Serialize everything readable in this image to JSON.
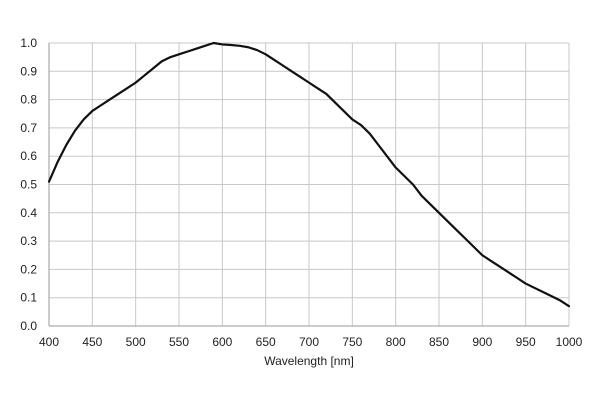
{
  "chart_data": {
    "type": "line",
    "title": "",
    "xlabel": "Wavelength [nm]",
    "ylabel": "",
    "xlim": [
      400,
      1000
    ],
    "ylim": [
      0,
      1.0
    ],
    "grid": true,
    "legend": "none",
    "x_ticks": [
      400,
      450,
      500,
      550,
      600,
      650,
      700,
      750,
      800,
      850,
      900,
      950,
      1000
    ],
    "x_tick_labels": [
      "400",
      "450",
      "500",
      "550",
      "600",
      "650",
      "700",
      "750",
      "800",
      "850",
      "900",
      "950",
      "1000"
    ],
    "y_ticks": [
      0,
      0.1,
      0.2,
      0.3,
      0.4,
      0.5,
      0.6,
      0.7,
      0.8,
      0.9,
      1.0
    ],
    "y_tick_labels": [
      "0.0",
      "0.1",
      "0.2",
      "0.3",
      "0.4",
      "0.5",
      "0.6",
      "0.7",
      "0.8",
      "0.9",
      "1.0"
    ],
    "series": [
      {
        "color": "#111111",
        "x": [
          400,
          410,
          420,
          430,
          440,
          450,
          460,
          470,
          480,
          490,
          500,
          510,
          520,
          530,
          540,
          550,
          560,
          570,
          580,
          590,
          600,
          610,
          620,
          630,
          640,
          650,
          660,
          670,
          680,
          690,
          700,
          710,
          720,
          730,
          740,
          750,
          760,
          770,
          780,
          790,
          800,
          810,
          820,
          830,
          840,
          850,
          860,
          870,
          880,
          890,
          900,
          910,
          920,
          930,
          940,
          950,
          960,
          970,
          980,
          990,
          1000
        ],
        "y": [
          0.51,
          0.58,
          0.64,
          0.69,
          0.73,
          0.76,
          0.78,
          0.8,
          0.82,
          0.84,
          0.86,
          0.885,
          0.91,
          0.935,
          0.95,
          0.96,
          0.97,
          0.98,
          0.99,
          1.0,
          0.995,
          0.993,
          0.99,
          0.985,
          0.975,
          0.96,
          0.94,
          0.92,
          0.9,
          0.88,
          0.86,
          0.84,
          0.82,
          0.79,
          0.76,
          0.73,
          0.71,
          0.68,
          0.64,
          0.6,
          0.56,
          0.53,
          0.5,
          0.46,
          0.43,
          0.4,
          0.37,
          0.34,
          0.31,
          0.28,
          0.25,
          0.23,
          0.21,
          0.19,
          0.17,
          0.15,
          0.135,
          0.12,
          0.105,
          0.09,
          0.07
        ]
      }
    ]
  }
}
